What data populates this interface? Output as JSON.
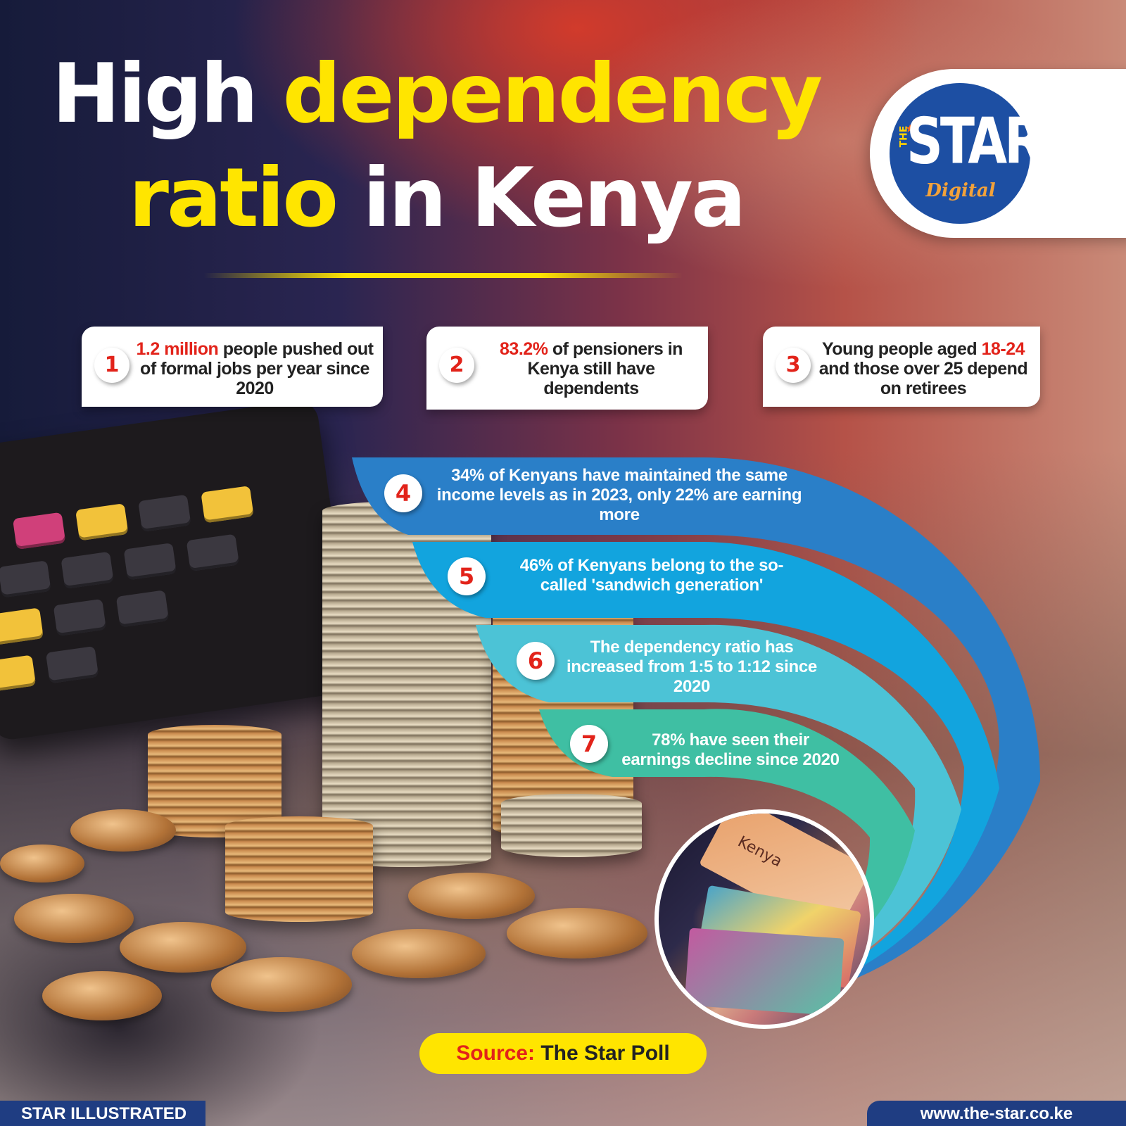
{
  "title": {
    "word1": "High",
    "word2": "dependency",
    "word3": "ratio",
    "word4": "in Kenya"
  },
  "logo": {
    "the": "THE",
    "star": "STAR",
    "digital": "Digital"
  },
  "facts": [
    {
      "number": "1",
      "highlight": "1.2 million",
      "text": " people pushed out of formal jobs per year since 2020"
    },
    {
      "number": "2",
      "highlight": "83.2%",
      "text": " of pensioners in Kenya still have dependents"
    },
    {
      "number": "3",
      "prefix": "Young people aged ",
      "highlight": "18-24",
      "text": " and those over 25 depend on retirees"
    },
    {
      "number": "4",
      "text": "34% of Kenyans have maintained the same income levels as in 2023, only 22% are earning more"
    },
    {
      "number": "5",
      "text": "46% of Kenyans belong to the so-called 'sandwich generation'"
    },
    {
      "number": "6",
      "text": "The dependency ratio has increased from 1:5 to 1:12 since 2020"
    },
    {
      "number": "7",
      "text": "78% have seen their earnings decline since 2020"
    }
  ],
  "photo_caption": "Kenya",
  "source": {
    "label": "Source:",
    "value": " The Star Poll"
  },
  "footer": {
    "left": "STAR ILLUSTRATED",
    "right": "www.the-star.co.ke"
  },
  "colors": {
    "highlight_yellow": "#ffe500",
    "accent_red": "#e2231a",
    "band4": "#2a7fc8",
    "band5": "#12a4de",
    "band6": "#4cc3d6",
    "band7": "#3fbfa3",
    "footer_blue": "#1f3d82"
  }
}
